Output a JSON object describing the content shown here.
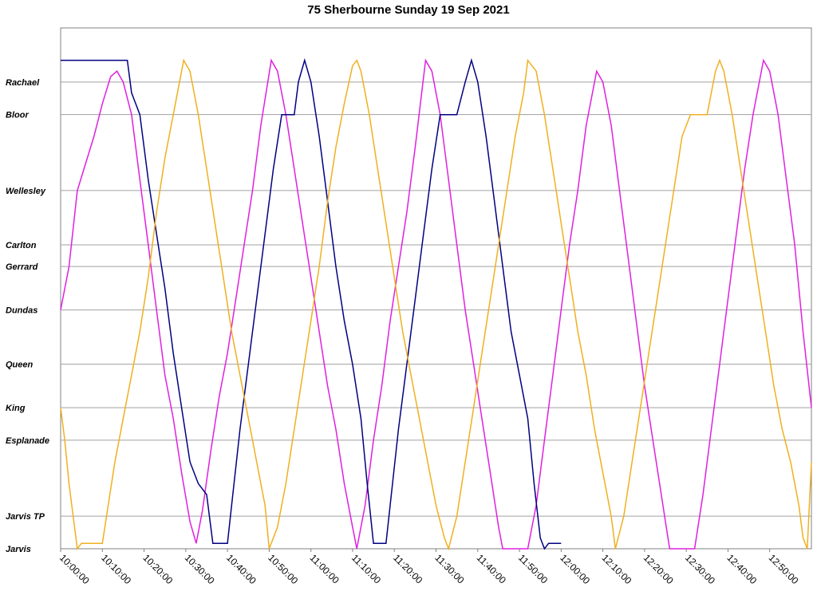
{
  "chart_data": {
    "type": "line",
    "title": "75 Sherbourne Sunday 19 Sep 2021",
    "x_range_minutes": [
      0,
      180
    ],
    "x_ticks": [
      "10:00:00",
      "10:10:00",
      "10:20:00",
      "10:30:00",
      "10:40:00",
      "10:50:00",
      "11:00:00",
      "11:10:00",
      "11:20:00",
      "11:30:00",
      "11:40:00",
      "11:50:00",
      "12:00:00",
      "12:10:00",
      "12:20:00",
      "12:30:00",
      "12:40:00",
      "12:50:00"
    ],
    "stops": [
      {
        "name": "Jarvis",
        "km": 0
      },
      {
        "name": "Jarvis TP",
        "km": 0.3
      },
      {
        "name": "Esplanade",
        "km": 1.0
      },
      {
        "name": "King",
        "km": 1.3
      },
      {
        "name": "Queen",
        "km": 1.7
      },
      {
        "name": "Dundas",
        "km": 2.2
      },
      {
        "name": "Gerrard",
        "km": 2.6
      },
      {
        "name": "Carlton",
        "km": 2.8
      },
      {
        "name": "Wellesley",
        "km": 3.3
      },
      {
        "name": "Bloor",
        "km": 4.0
      },
      {
        "name": "Rachael",
        "km": 4.3
      }
    ],
    "y_max_km": 4.6,
    "grid": true,
    "series": [
      {
        "color": "#e020e0",
        "points": [
          [
            0,
            2.2
          ],
          [
            2,
            2.6
          ],
          [
            4,
            3.3
          ],
          [
            8,
            3.8
          ],
          [
            10,
            4.1
          ],
          [
            12,
            4.35
          ],
          [
            13.5,
            4.4
          ],
          [
            15,
            4.3
          ],
          [
            17,
            4.0
          ],
          [
            19,
            3.4
          ],
          [
            21,
            2.8
          ],
          [
            23,
            2.2
          ],
          [
            25,
            1.6
          ],
          [
            27,
            1.2
          ],
          [
            29,
            0.7
          ],
          [
            31,
            0.25
          ],
          [
            32.5,
            0.05
          ],
          [
            34,
            0.35
          ],
          [
            36,
            0.9
          ],
          [
            38,
            1.4
          ],
          [
            40,
            1.8
          ],
          [
            42,
            2.3
          ],
          [
            44,
            2.8
          ],
          [
            46,
            3.3
          ],
          [
            48,
            3.9
          ],
          [
            50.5,
            4.5
          ],
          [
            52,
            4.4
          ],
          [
            54,
            4.0
          ],
          [
            56,
            3.5
          ],
          [
            58,
            3.0
          ],
          [
            60,
            2.5
          ],
          [
            62,
            2.0
          ],
          [
            64,
            1.5
          ],
          [
            66,
            1.1
          ],
          [
            68,
            0.6
          ],
          [
            70,
            0.2
          ],
          [
            71,
            0
          ],
          [
            73,
            0.4
          ],
          [
            75,
            1.0
          ],
          [
            77,
            1.5
          ],
          [
            79,
            2.1
          ],
          [
            81,
            2.6
          ],
          [
            83,
            3.1
          ],
          [
            85,
            3.7
          ],
          [
            87.5,
            4.5
          ],
          [
            89,
            4.4
          ],
          [
            91,
            4.0
          ],
          [
            93,
            3.4
          ],
          [
            95,
            2.8
          ],
          [
            97,
            2.2
          ],
          [
            99,
            1.7
          ],
          [
            101,
            1.2
          ],
          [
            103,
            0.7
          ],
          [
            105,
            0.2
          ],
          [
            106,
            0
          ],
          [
            112,
            0
          ],
          [
            114,
            0.4
          ],
          [
            116,
            1.0
          ],
          [
            118,
            1.6
          ],
          [
            120,
            2.2
          ],
          [
            122,
            2.8
          ],
          [
            124,
            3.3
          ],
          [
            126,
            3.9
          ],
          [
            128.5,
            4.4
          ],
          [
            130,
            4.3
          ],
          [
            132,
            3.9
          ],
          [
            134,
            3.3
          ],
          [
            136,
            2.7
          ],
          [
            138,
            2.1
          ],
          [
            140,
            1.5
          ],
          [
            142,
            1.0
          ],
          [
            144,
            0.5
          ],
          [
            146,
            0
          ],
          [
            152,
            0
          ],
          [
            154,
            0.5
          ],
          [
            156,
            1.1
          ],
          [
            158,
            1.7
          ],
          [
            160,
            2.3
          ],
          [
            162,
            2.9
          ],
          [
            164,
            3.5
          ],
          [
            166,
            4.0
          ],
          [
            168.5,
            4.5
          ],
          [
            170,
            4.4
          ],
          [
            172,
            4.0
          ],
          [
            174,
            3.4
          ],
          [
            176,
            2.8
          ],
          [
            178,
            2.0
          ],
          [
            180,
            1.3
          ]
        ]
      },
      {
        "color": "#000080",
        "points": [
          [
            0,
            4.5
          ],
          [
            16,
            4.5
          ],
          [
            17,
            4.2
          ],
          [
            19,
            4.0
          ],
          [
            21,
            3.4
          ],
          [
            23,
            2.9
          ],
          [
            25,
            2.4
          ],
          [
            27,
            1.8
          ],
          [
            29,
            1.3
          ],
          [
            31,
            0.8
          ],
          [
            33,
            0.6
          ],
          [
            35,
            0.5
          ],
          [
            36.5,
            0.05
          ],
          [
            37,
            0.05
          ],
          [
            40,
            0.05
          ],
          [
            41,
            0.4
          ],
          [
            43,
            1.1
          ],
          [
            45,
            1.7
          ],
          [
            47,
            2.3
          ],
          [
            49,
            2.9
          ],
          [
            51,
            3.5
          ],
          [
            53,
            4.0
          ],
          [
            56,
            4.0
          ],
          [
            57,
            4.3
          ],
          [
            58.5,
            4.5
          ],
          [
            60,
            4.3
          ],
          [
            62,
            3.8
          ],
          [
            64,
            3.2
          ],
          [
            66,
            2.6
          ],
          [
            68,
            2.1
          ],
          [
            70,
            1.7
          ],
          [
            72,
            1.2
          ],
          [
            73.5,
            0.6
          ],
          [
            75,
            0.05
          ],
          [
            78,
            0.05
          ],
          [
            79,
            0.4
          ],
          [
            81,
            1.1
          ],
          [
            83,
            1.7
          ],
          [
            85,
            2.3
          ],
          [
            87,
            2.9
          ],
          [
            89,
            3.5
          ],
          [
            91,
            4.0
          ],
          [
            95,
            4.0
          ],
          [
            97,
            4.3
          ],
          [
            98.5,
            4.5
          ],
          [
            100,
            4.3
          ],
          [
            102,
            3.8
          ],
          [
            104,
            3.2
          ],
          [
            106,
            2.6
          ],
          [
            108,
            2.0
          ],
          [
            110,
            1.6
          ],
          [
            112,
            1.2
          ],
          [
            113.5,
            0.6
          ],
          [
            115,
            0.1
          ],
          [
            116,
            0
          ],
          [
            117,
            0.05
          ],
          [
            120,
            0.05
          ]
        ]
      },
      {
        "color": "#f0b020",
        "points": [
          [
            0,
            1.3
          ],
          [
            1,
            1.0
          ],
          [
            2,
            0.6
          ],
          [
            3,
            0.3
          ],
          [
            4,
            0
          ],
          [
            5,
            0.05
          ],
          [
            10,
            0.05
          ],
          [
            11,
            0.3
          ],
          [
            13,
            0.8
          ],
          [
            15,
            1.2
          ],
          [
            17,
            1.6
          ],
          [
            19,
            2.0
          ],
          [
            21,
            2.5
          ],
          [
            23,
            3.1
          ],
          [
            25,
            3.6
          ],
          [
            27,
            4.0
          ],
          [
            29,
            4.4
          ],
          [
            29.5,
            4.5
          ],
          [
            31,
            4.4
          ],
          [
            33,
            4.0
          ],
          [
            35,
            3.5
          ],
          [
            37,
            3.0
          ],
          [
            39,
            2.5
          ],
          [
            41,
            2.0
          ],
          [
            43,
            1.6
          ],
          [
            45,
            1.2
          ],
          [
            47,
            0.8
          ],
          [
            49,
            0.4
          ],
          [
            50,
            0
          ],
          [
            52,
            0.2
          ],
          [
            54,
            0.6
          ],
          [
            56,
            1.1
          ],
          [
            58,
            1.6
          ],
          [
            60,
            2.1
          ],
          [
            62,
            2.6
          ],
          [
            64,
            3.2
          ],
          [
            66,
            3.7
          ],
          [
            68,
            4.1
          ],
          [
            70,
            4.45
          ],
          [
            71,
            4.5
          ],
          [
            72,
            4.4
          ],
          [
            74,
            4.0
          ],
          [
            76,
            3.5
          ],
          [
            78,
            3.0
          ],
          [
            80,
            2.5
          ],
          [
            82,
            2.0
          ],
          [
            84,
            1.6
          ],
          [
            86,
            1.2
          ],
          [
            88,
            0.8
          ],
          [
            90,
            0.4
          ],
          [
            92,
            0.1
          ],
          [
            93,
            0
          ],
          [
            95,
            0.3
          ],
          [
            97,
            0.8
          ],
          [
            99,
            1.3
          ],
          [
            101,
            1.8
          ],
          [
            103,
            2.3
          ],
          [
            105,
            2.8
          ],
          [
            107,
            3.3
          ],
          [
            109,
            3.8
          ],
          [
            111,
            4.2
          ],
          [
            112,
            4.5
          ],
          [
            114,
            4.4
          ],
          [
            116,
            4.0
          ],
          [
            118,
            3.5
          ],
          [
            120,
            3.0
          ],
          [
            122,
            2.5
          ],
          [
            124,
            2.0
          ],
          [
            126,
            1.6
          ],
          [
            128,
            1.1
          ],
          [
            130,
            0.7
          ],
          [
            132,
            0.3
          ],
          [
            133,
            0
          ],
          [
            135,
            0.3
          ],
          [
            137,
            0.8
          ],
          [
            139,
            1.3
          ],
          [
            141,
            1.8
          ],
          [
            143,
            2.3
          ],
          [
            145,
            2.8
          ],
          [
            147,
            3.3
          ],
          [
            149,
            3.8
          ],
          [
            151,
            4.0
          ],
          [
            155,
            4.0
          ],
          [
            156,
            4.2
          ],
          [
            157,
            4.4
          ],
          [
            158,
            4.5
          ],
          [
            159,
            4.4
          ],
          [
            161,
            4.0
          ],
          [
            163,
            3.5
          ],
          [
            165,
            3.0
          ],
          [
            167,
            2.5
          ],
          [
            169,
            2.0
          ],
          [
            171,
            1.5
          ],
          [
            173,
            1.1
          ],
          [
            175,
            0.8
          ],
          [
            177,
            0.4
          ],
          [
            178,
            0.1
          ],
          [
            179,
            0
          ],
          [
            180,
            0.8
          ]
        ]
      }
    ]
  }
}
